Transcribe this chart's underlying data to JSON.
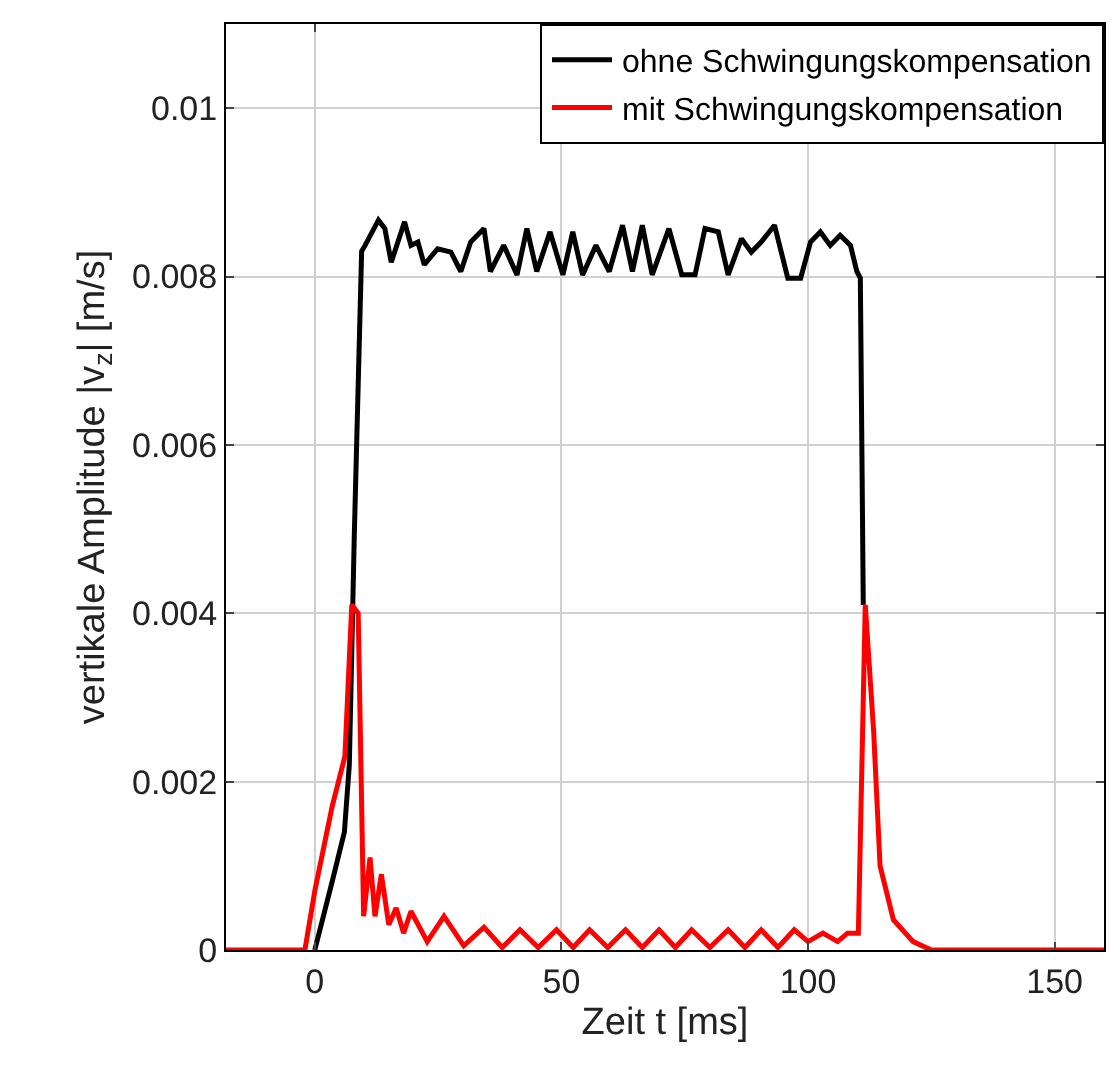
{
  "chart_data": {
    "type": "line",
    "xlabel": "Zeit t [ms]",
    "ylabel": "vertikale Amplitude |v$_{z}$| [m/s]",
    "xlim": [
      -18,
      160
    ],
    "ylim": [
      0,
      0.011
    ],
    "xticks": [
      0,
      50,
      100,
      150
    ],
    "yticks": [
      0,
      0.002,
      0.004,
      0.006,
      0.008,
      0.01
    ],
    "grid": true,
    "legend": "top right",
    "line_style": "solid",
    "marker": "none",
    "series": [
      {
        "name": "ohne Schwingungskompensation",
        "color": "#000000",
        "x": [
          0,
          3.6,
          6,
          7,
          8,
          9.5,
          10.2,
          12.9,
          14.2,
          15.5,
          18.2,
          19.5,
          20.9,
          22.2,
          24.9,
          27.6,
          29.6,
          31.6,
          34.3,
          35.6,
          38.3,
          41,
          43,
          45,
          47.7,
          50.3,
          52.3,
          54.3,
          57,
          59.7,
          62.4,
          64.4,
          66.4,
          68.4,
          71.8,
          74.4,
          77.1,
          79.1,
          81.8,
          83.8,
          86.5,
          88.5,
          90.5,
          93.2,
          95.9,
          98.5,
          100.5,
          102.5,
          104.5,
          106.5,
          108.6,
          109.9,
          110.6,
          111.2
        ],
        "values": [
          0,
          0.00083,
          0.0014,
          0.0022,
          0.0049,
          0.0083,
          0.00837,
          0.00867,
          0.00857,
          0.00817,
          0.00865,
          0.00837,
          0.00841,
          0.00814,
          0.00833,
          0.00829,
          0.00806,
          0.00841,
          0.00857,
          0.00806,
          0.00837,
          0.00802,
          0.00857,
          0.00806,
          0.00853,
          0.00802,
          0.00853,
          0.00802,
          0.00837,
          0.00806,
          0.00861,
          0.00806,
          0.00861,
          0.00802,
          0.00857,
          0.00802,
          0.00802,
          0.00857,
          0.00853,
          0.00802,
          0.00845,
          0.00829,
          0.00841,
          0.00861,
          0.00798,
          0.00798,
          0.00841,
          0.00853,
          0.00837,
          0.00849,
          0.00837,
          0.00806,
          0.00798,
          0.0041
        ]
      },
      {
        "name": "mit Schwingungskompensation",
        "color": "#ff0000",
        "x": [
          -18,
          -2,
          0,
          3.5,
          6.1,
          7.5,
          8.8,
          9.9,
          11.2,
          12.2,
          13.5,
          15,
          16.5,
          18,
          19.5,
          22.8,
          26.2,
          30.2,
          34.3,
          38,
          41.6,
          45.3,
          49,
          52.4,
          55.7,
          59.4,
          63,
          66.4,
          69.8,
          73.1,
          76.4,
          80.1,
          83.8,
          87.2,
          90.5,
          93.9,
          97.2,
          100,
          103,
          106,
          108,
          110.2,
          111.6,
          113.3,
          114.6,
          117.3,
          121.3,
          125,
          160
        ],
        "values": [
          0,
          0,
          0.0007,
          0.0017,
          0.0023,
          0.0041,
          0.004,
          0.0004,
          0.0011,
          0.0004,
          0.0009,
          0.0003,
          0.0005,
          0.0002,
          0.00046,
          0.0001,
          0.0004,
          5e-05,
          0.00027,
          3e-05,
          0.00024,
          3e-05,
          0.00024,
          3e-05,
          0.00024,
          3e-05,
          0.00024,
          3e-05,
          0.00024,
          3e-05,
          0.00024,
          3e-05,
          0.00024,
          3e-05,
          0.00024,
          3e-05,
          0.00024,
          0.0001,
          0.0002,
          0.0001,
          0.0002,
          0.0002,
          0.0041,
          0.0026,
          0.001,
          0.00036,
          0.0001,
          0,
          0
        ]
      }
    ]
  }
}
